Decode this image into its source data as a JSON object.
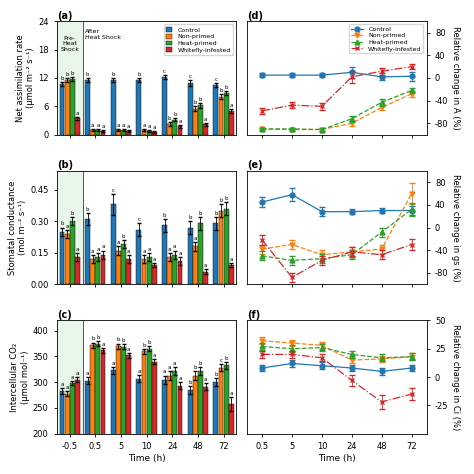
{
  "chart_data": [
    {
      "type": "bar",
      "title": "(a)",
      "ylabel": "Net assimilation rate\n(μmol m⁻² s⁻¹)",
      "categories": [
        "-0.5",
        "0.5",
        "5",
        "10",
        "24",
        "48",
        "72"
      ],
      "ylim": [
        0,
        24
      ],
      "yticks": [
        0,
        6,
        12,
        18,
        24
      ],
      "tick_labels": "y",
      "legend": "upper right",
      "annotations": [
        "Pre-\nHeat\nShock",
        "After\nHeat Shock"
      ],
      "series": [
        {
          "name": "Control",
          "values": [
            10.8,
            11.5,
            11.5,
            11.5,
            12.2,
            11.0,
            10.5
          ],
          "errors": [
            0.4,
            0.4,
            0.4,
            0.4,
            0.5,
            0.6,
            0.5
          ],
          "letters": [
            "b",
            "b",
            "b",
            "b",
            "c",
            "c",
            "c"
          ]
        },
        {
          "name": "Non-primed",
          "values": [
            11.5,
            0.9,
            1.0,
            0.9,
            2.2,
            5.5,
            8.0
          ],
          "errors": [
            0.4,
            0.2,
            0.2,
            0.2,
            0.4,
            0.5,
            0.5
          ],
          "letters": [
            "b",
            "a",
            "a",
            "a",
            "b",
            "b",
            "b"
          ]
        },
        {
          "name": "Heat-primed",
          "values": [
            11.8,
            1.0,
            0.9,
            0.8,
            3.2,
            6.2,
            8.8
          ],
          "errors": [
            0.4,
            0.2,
            0.2,
            0.2,
            0.4,
            0.5,
            0.5
          ],
          "letters": [
            "b",
            "a",
            "a",
            "a",
            "b",
            "b",
            "b"
          ]
        },
        {
          "name": "Whitefly-infested",
          "values": [
            3.5,
            0.7,
            0.7,
            0.6,
            1.8,
            2.2,
            5.0
          ],
          "errors": [
            0.3,
            0.2,
            0.2,
            0.2,
            0.3,
            0.3,
            0.4
          ],
          "letters": [
            "a",
            "a",
            "a",
            "a",
            "a",
            "a",
            "a"
          ]
        }
      ]
    },
    {
      "type": "bar",
      "title": "(b)",
      "ylabel": "Stomatal conductance\n(mol m⁻² s⁻¹)",
      "categories": [
        "-0.5",
        "0.5",
        "5",
        "10",
        "24",
        "48",
        "72"
      ],
      "ylim": [
        0.0,
        0.54
      ],
      "yticks": [
        {
          "value": 0.0,
          "label": "0.00"
        },
        {
          "value": 0.15,
          "label": "0.15"
        },
        {
          "value": 0.3,
          "label": "0.30"
        },
        {
          "value": 0.45,
          "label": "0.45"
        }
      ],
      "tick_labels": "y",
      "series": [
        {
          "name": "Control",
          "values": [
            0.25,
            0.31,
            0.38,
            0.26,
            0.28,
            0.27,
            0.29
          ],
          "errors": [
            0.02,
            0.03,
            0.05,
            0.03,
            0.03,
            0.03,
            0.03
          ],
          "letters": [
            "b",
            "b",
            "c",
            "c",
            "b",
            "b",
            "b"
          ]
        },
        {
          "name": "Non-primed",
          "values": [
            0.24,
            0.12,
            0.16,
            0.12,
            0.13,
            0.18,
            0.35
          ],
          "errors": [
            0.02,
            0.02,
            0.02,
            0.02,
            0.02,
            0.02,
            0.03
          ],
          "letters": [
            "a",
            "a",
            "a",
            "a",
            "a",
            "a",
            "b"
          ]
        },
        {
          "name": "Heat-primed",
          "values": [
            0.3,
            0.13,
            0.19,
            0.13,
            0.14,
            0.29,
            0.36
          ],
          "errors": [
            0.02,
            0.02,
            0.02,
            0.02,
            0.02,
            0.03,
            0.03
          ],
          "letters": [
            "b",
            "a",
            "b",
            "a",
            "a",
            "b",
            "b"
          ]
        },
        {
          "name": "Whitefly-infested",
          "values": [
            0.13,
            0.14,
            0.12,
            0.09,
            0.11,
            0.06,
            0.09
          ],
          "errors": [
            0.02,
            0.02,
            0.02,
            0.01,
            0.02,
            0.01,
            0.01
          ],
          "letters": [
            "a",
            "a",
            "a",
            "a",
            "a",
            "a",
            "a"
          ]
        }
      ]
    },
    {
      "type": "bar",
      "title": "(c)",
      "ylabel": "Intercellular CO₂\n(μmol mol⁻¹)",
      "xlabel": "Time (h)",
      "categories": [
        "-0.5",
        "0.5",
        "5",
        "10",
        "24",
        "48",
        "72"
      ],
      "ylim": [
        200,
        420
      ],
      "yticks": [
        200,
        250,
        300,
        350,
        400
      ],
      "series": [
        {
          "name": "Control",
          "values": [
            283,
            303,
            323,
            307,
            305,
            285,
            300
          ],
          "errors": [
            5,
            7,
            7,
            7,
            8,
            8,
            8
          ],
          "letters": [
            "a",
            "a",
            "a",
            "a",
            "a",
            "b",
            "b"
          ]
        },
        {
          "name": "Non-primed",
          "values": [
            278,
            372,
            370,
            360,
            313,
            313,
            328
          ],
          "errors": [
            4,
            5,
            5,
            5,
            8,
            8,
            7
          ],
          "letters": [
            "a",
            "b",
            "b",
            "b",
            "a",
            "b",
            "c"
          ]
        },
        {
          "name": "Heat-primed",
          "values": [
            299,
            375,
            369,
            365,
            322,
            322,
            333
          ],
          "errors": [
            4,
            5,
            5,
            5,
            8,
            8,
            7
          ],
          "letters": [
            "a",
            "b",
            "b",
            "b",
            "a",
            "b",
            "b"
          ]
        },
        {
          "name": "Whitefly-infested",
          "values": [
            305,
            362,
            352,
            340,
            293,
            291,
            258
          ],
          "errors": [
            5,
            5,
            5,
            5,
            7,
            7,
            14
          ],
          "letters": [
            "a",
            "a",
            "a",
            "a",
            "a",
            "a",
            "a"
          ]
        }
      ]
    },
    {
      "type": "line",
      "title": "(d)",
      "ylabel": "Relative change in A (%)",
      "categories": [
        "0.5",
        "5",
        "10",
        "24",
        "48",
        "72"
      ],
      "ylim": [
        -100,
        100
      ],
      "yticks": [
        -80,
        -40,
        0,
        40,
        80
      ],
      "tick_labels": "y",
      "legend": "upper right",
      "series": [
        {
          "name": "Control",
          "marker": "circle",
          "line_style": "solid",
          "values": [
            5,
            5,
            5,
            10,
            2,
            3
          ],
          "errors": [
            4,
            4,
            4,
            10,
            6,
            8
          ]
        },
        {
          "name": "Non-primed",
          "marker": "triangle_down",
          "line_style": "dashed",
          "values": [
            -90,
            -91,
            -91,
            -80,
            -52,
            -28
          ],
          "errors": [
            2,
            2,
            2,
            4,
            5,
            5
          ]
        },
        {
          "name": "Heat-primed",
          "marker": "triangle_up",
          "line_style": "dashed",
          "values": [
            -90,
            -90,
            -91,
            -72,
            -43,
            -22
          ],
          "errors": [
            2,
            2,
            2,
            5,
            6,
            5
          ]
        },
        {
          "name": "Whitefly-infested",
          "marker": "x",
          "line_style": "dashdot",
          "values": [
            -58,
            -48,
            -50,
            2,
            12,
            20
          ],
          "errors": [
            5,
            5,
            6,
            10,
            6,
            5
          ]
        }
      ]
    },
    {
      "type": "line",
      "title": "(e)",
      "ylabel": "Relative change in gs (%)",
      "categories": [
        "0.5",
        "5",
        "10",
        "24",
        "48",
        "72"
      ],
      "ylim": [
        -100,
        100
      ],
      "yticks": [
        -80,
        -40,
        0,
        40,
        80
      ],
      "tick_labels": "y",
      "series": [
        {
          "name": "Control",
          "marker": "circle",
          "line_style": "solid",
          "values": [
            45,
            58,
            28,
            28,
            30,
            30
          ],
          "errors": [
            8,
            12,
            8,
            5,
            5,
            8
          ]
        },
        {
          "name": "Non-primed",
          "marker": "triangle_down",
          "line_style": "dashed",
          "values": [
            -38,
            -30,
            -48,
            -43,
            -38,
            60
          ],
          "errors": [
            8,
            8,
            8,
            8,
            8,
            18
          ]
        },
        {
          "name": "Heat-primed",
          "marker": "triangle_up",
          "line_style": "dashed",
          "values": [
            -50,
            -58,
            -55,
            -48,
            -8,
            32
          ],
          "errors": [
            8,
            8,
            8,
            8,
            8,
            12
          ]
        },
        {
          "name": "Whitefly-infested",
          "marker": "x",
          "line_style": "dashdot",
          "values": [
            -22,
            -88,
            -58,
            -43,
            -48,
            -30
          ],
          "errors": [
            8,
            8,
            8,
            8,
            8,
            10
          ]
        }
      ]
    },
    {
      "type": "line",
      "title": "(f)",
      "ylabel": "Relative change in Ci (%)",
      "xlabel": "Time (h)",
      "categories": [
        "0.5",
        "5",
        "10",
        "24",
        "48",
        "72"
      ],
      "ylim": [
        -50,
        50
      ],
      "yticks": [
        -25,
        0,
        25,
        50
      ],
      "series": [
        {
          "name": "Control",
          "marker": "circle",
          "line_style": "solid",
          "values": [
            8,
            12,
            10,
            8,
            5,
            8
          ],
          "errors": [
            3,
            3,
            3,
            3,
            3,
            3
          ]
        },
        {
          "name": "Non-primed",
          "marker": "triangle_down",
          "line_style": "dashed",
          "values": [
            32,
            30,
            28,
            15,
            16,
            18
          ],
          "errors": [
            3,
            3,
            3,
            3,
            3,
            3
          ]
        },
        {
          "name": "Heat-primed",
          "marker": "triangle_up",
          "line_style": "dashed",
          "values": [
            27,
            25,
            26,
            20,
            17,
            18
          ],
          "errors": [
            3,
            3,
            3,
            3,
            3,
            3
          ]
        },
        {
          "name": "Whitefly-infested",
          "marker": "x",
          "line_style": "dashdot",
          "values": [
            20,
            20,
            17,
            -3,
            -22,
            -15
          ],
          "errors": [
            3,
            3,
            3,
            5,
            6,
            5
          ]
        }
      ]
    }
  ]
}
